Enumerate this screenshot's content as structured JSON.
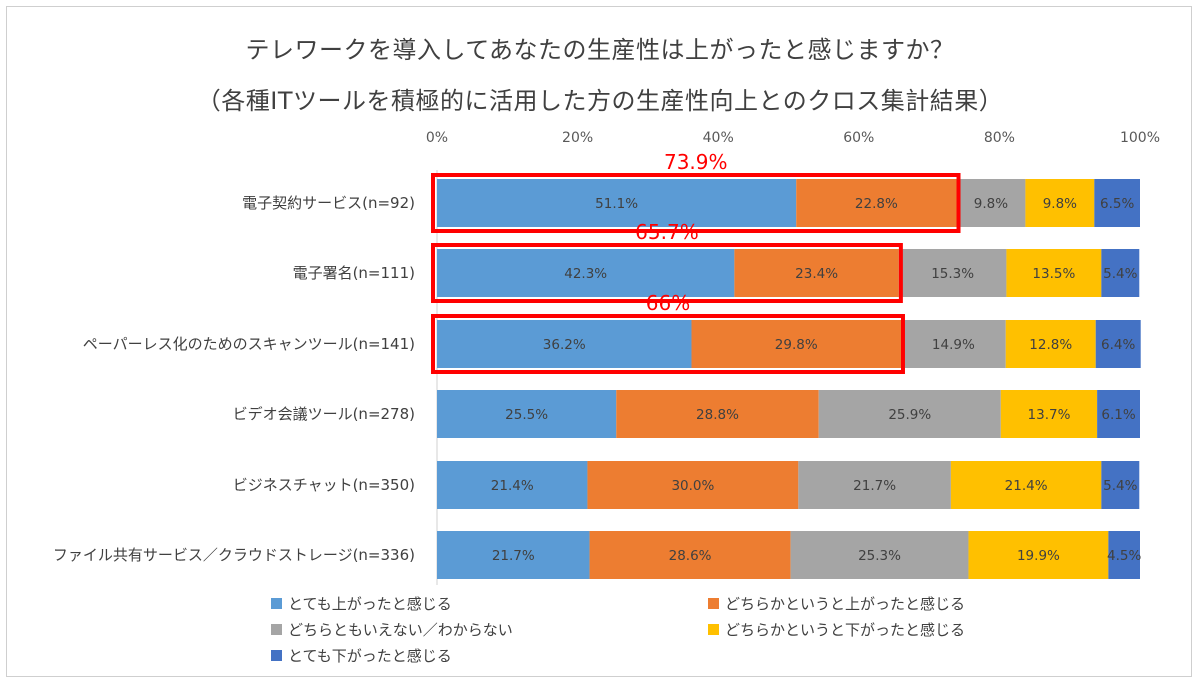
{
  "chart_data": {
    "type": "bar",
    "stacked": true,
    "orientation": "horizontal",
    "title": "テレワークを導入してあなたの生産性は上がったと感じますか？",
    "subtitle": "（各種ITツールを積極的に活用した方の生産性向上とのクロス集計結果）",
    "xlim": [
      0,
      100
    ],
    "x_ticks": [
      "0%",
      "20%",
      "40%",
      "60%",
      "80%",
      "100%"
    ],
    "categories": [
      "電子契約サービス(n=92)",
      "電子署名(n=111)",
      "ペーパーレス化のためのスキャンツール(n=141)",
      "ビデオ会議ツール(n=278)",
      "ビジネスチャット(n=350)",
      "ファイル共有サービス／クラウドストレージ(n=336)"
    ],
    "series": [
      {
        "name": "とても上がったと感じる",
        "color": "#5b9bd5",
        "values": [
          51.1,
          42.3,
          36.2,
          25.5,
          21.4,
          21.7
        ],
        "labels": [
          "51.1%",
          "42.3%",
          "36.2%",
          "25.5%",
          "21.4%",
          "21.7%"
        ]
      },
      {
        "name": "どちらかというと上がったと感じる",
        "color": "#ed7d31",
        "values": [
          22.8,
          23.4,
          29.8,
          28.8,
          30.0,
          28.6
        ],
        "labels": [
          "22.8%",
          "23.4%",
          "29.8%",
          "28.8%",
          "30.0%",
          "28.6%"
        ]
      },
      {
        "name": "どちらともいえない／わからない",
        "color": "#a5a5a5",
        "values": [
          9.8,
          15.3,
          14.9,
          25.9,
          21.7,
          25.3
        ],
        "labels": [
          "9.8%",
          "15.3%",
          "14.9%",
          "25.9%",
          "21.7%",
          "25.3%"
        ]
      },
      {
        "name": "どちらかというと下がったと感じる",
        "color": "#ffc000",
        "values": [
          9.8,
          13.5,
          12.8,
          13.7,
          21.4,
          19.9
        ],
        "labels": [
          "9.8%",
          "13.5%",
          "12.8%",
          "13.7%",
          "21.4%",
          "19.9%"
        ]
      },
      {
        "name": "とても下がったと感じる",
        "color": "#4472c4",
        "values": [
          6.5,
          5.4,
          6.4,
          6.1,
          5.4,
          4.5
        ],
        "labels": [
          "6.5%",
          "5.4%",
          "6.4%",
          "6.1%",
          "5.4%",
          "4.5%"
        ]
      }
    ],
    "annotations": [
      {
        "category_index": 0,
        "text": "73.9%",
        "value": 73.9,
        "color": "#ff0000"
      },
      {
        "category_index": 1,
        "text": "65.7%",
        "value": 65.7,
        "color": "#ff0000"
      },
      {
        "category_index": 2,
        "text": "66%",
        "value": 66,
        "color": "#ff0000"
      }
    ],
    "legend_position": "bottom",
    "grid": false
  }
}
